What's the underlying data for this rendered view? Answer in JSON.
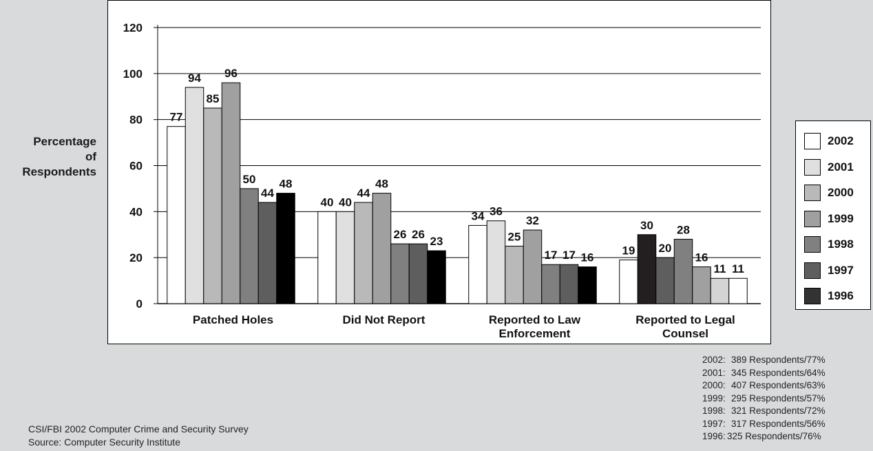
{
  "chart_data": {
    "type": "bar",
    "ylabel": [
      "Percentage",
      "of",
      "Respondents"
    ],
    "ylim": [
      0,
      120
    ],
    "yticks": [
      "0",
      "20",
      "40",
      "60",
      "80",
      "100",
      "120"
    ],
    "grid": "horizontal",
    "legend_position": "right",
    "categories": [
      [
        "Patched Holes"
      ],
      [
        "Did Not Report"
      ],
      [
        "Reported to Law",
        "Enforcement"
      ],
      [
        "Reported to Legal",
        "Counsel"
      ]
    ],
    "series": [
      {
        "name": "2002",
        "color": "#ffffff",
        "values": [
          77,
          40,
          34,
          19
        ]
      },
      {
        "name": "2001",
        "color": "#e0e0e0",
        "values": [
          94,
          40,
          36,
          30
        ]
      },
      {
        "name": "2000",
        "color": "#b9b9b9",
        "values": [
          85,
          44,
          25,
          20
        ]
      },
      {
        "name": "1999",
        "color": "#a0a0a0",
        "values": [
          96,
          48,
          32,
          28
        ]
      },
      {
        "name": "1998",
        "color": "#808080",
        "values": [
          50,
          26,
          17,
          16
        ]
      },
      {
        "name": "1997",
        "color": "#5e5e5e",
        "values": [
          44,
          26,
          17,
          11
        ]
      },
      {
        "name": "1996",
        "color": "#000000",
        "values": [
          48,
          23,
          16,
          11
        ]
      }
    ],
    "bar_colors_by_group": [
      [
        "#ffffff",
        "#e0e0e0",
        "#b9b9b9",
        "#a0a0a0",
        "#808080",
        "#5e5e5e",
        "#000000"
      ],
      [
        "#ffffff",
        "#e0e0e0",
        "#b9b9b9",
        "#a0a0a0",
        "#808080",
        "#5e5e5e",
        "#000000"
      ],
      [
        "#ffffff",
        "#e0e0e0",
        "#b9b9b9",
        "#a0a0a0",
        "#808080",
        "#5e5e5e",
        "#000000"
      ],
      [
        "#ffffff",
        "#231f20",
        "#5e5e5e",
        "#808080",
        "#a0a0a0",
        "#d4d4d4",
        "#ffffff"
      ]
    ]
  },
  "legend": {
    "items": [
      {
        "label": "2002",
        "color": "#ffffff"
      },
      {
        "label": "2001",
        "color": "#e0e0e0"
      },
      {
        "label": "2000",
        "color": "#b9b9b9"
      },
      {
        "label": "1999",
        "color": "#a0a0a0"
      },
      {
        "label": "1998",
        "color": "#808080"
      },
      {
        "label": "1997",
        "color": "#5e5e5e"
      },
      {
        "label": "1996",
        "color": "#333333"
      }
    ]
  },
  "respondent_notes": [
    {
      "year": "2002:",
      "text": "389 Respondents/77%"
    },
    {
      "year": "2001:",
      "text": "345 Respondents/64%"
    },
    {
      "year": "2000:",
      "text": "407 Respondents/63%"
    },
    {
      "year": "1999:",
      "text": "295 Respondents/57%"
    },
    {
      "year": "1998:",
      "text": "321 Respondents/72%"
    },
    {
      "year": "1997:",
      "text": "317 Respondents/56%"
    },
    {
      "year": "1996:",
      "text": "325 Respondents/76%"
    }
  ],
  "source": {
    "line1": "CSI/FBI 2002 Computer Crime and Security Survey",
    "line2": "Source: Computer Security Institute"
  }
}
